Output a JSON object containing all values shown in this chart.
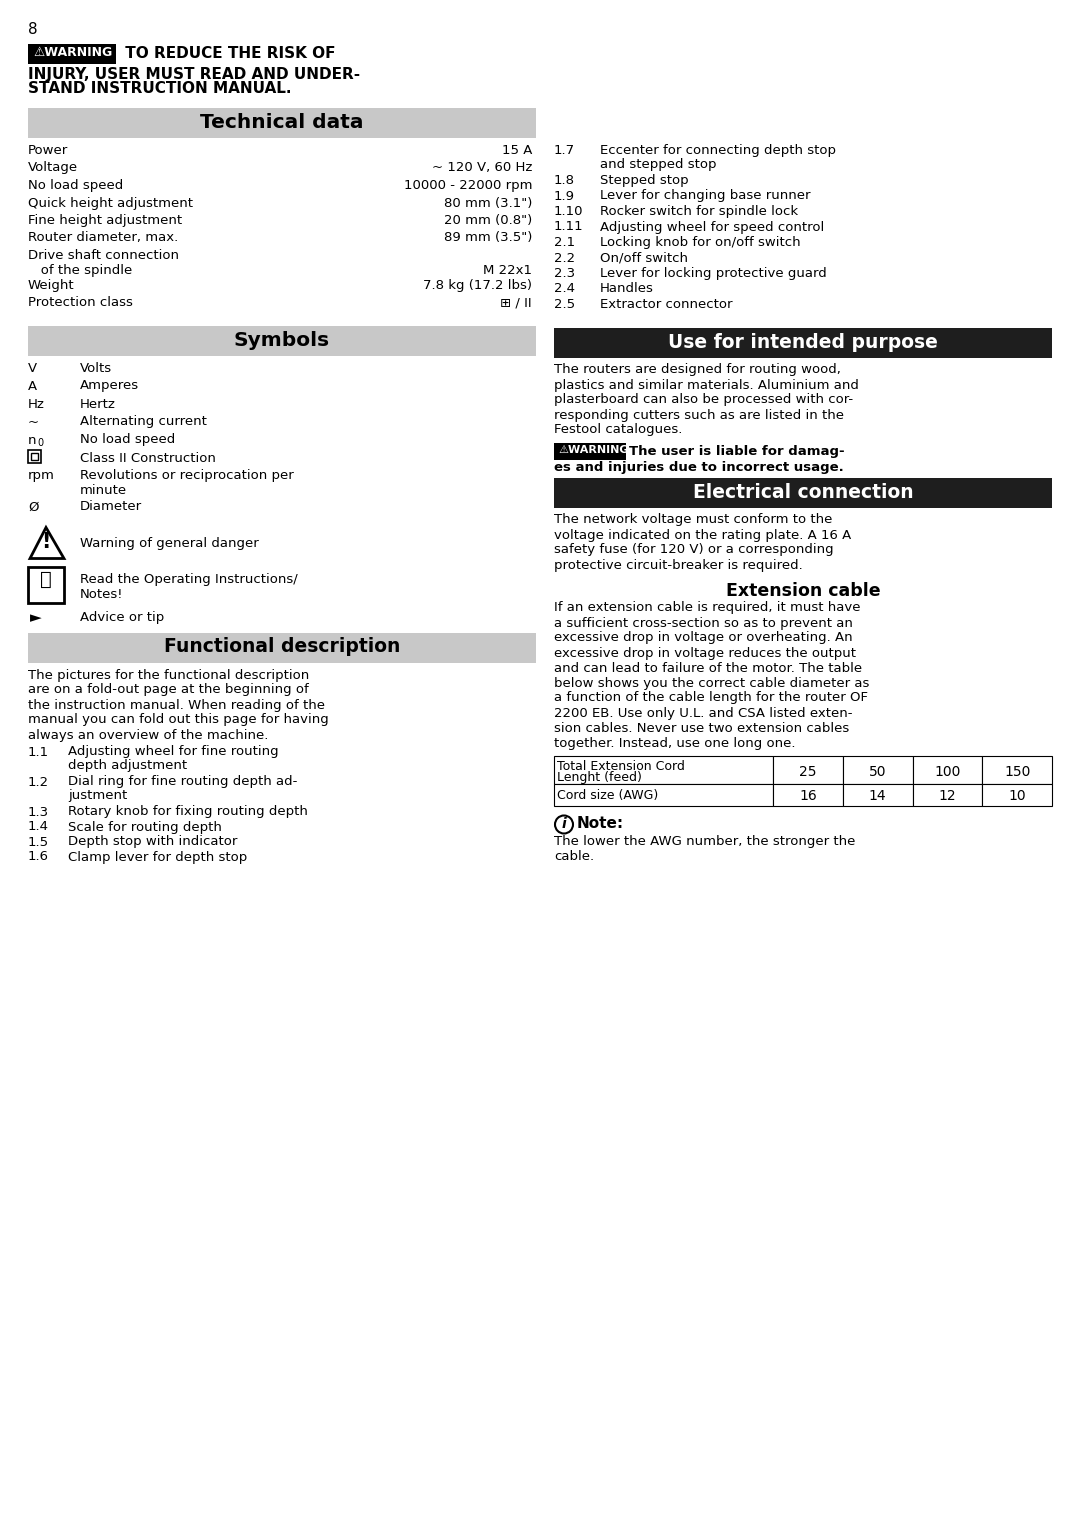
{
  "page_number": "8",
  "bg_color": "#ffffff",
  "section_header_bg": "#c8c8c8",
  "use_purpose_bg": "#1a1a1a",
  "electrical_bg": "#1a1a1a",
  "warning_text_lines": [
    " TO REDUCE THE RISK OF",
    "INJURY, USER MUST READ AND UNDER-",
    "STAND INSTRUCTION MANUAL."
  ],
  "tech_data_title": "Technical data",
  "tech_data_rows": [
    [
      "Power",
      "15 A"
    ],
    [
      "Voltage",
      "~ 120 V, 60 Hz"
    ],
    [
      "No load speed",
      "10000 - 22000 rpm"
    ],
    [
      "Quick height adjustment",
      "80 mm (3.1\")"
    ],
    [
      "Fine height adjustment",
      "20 mm (0.8\")"
    ],
    [
      "Router diameter, max.",
      "89 mm (3.5\")"
    ],
    [
      "Drive shaft connection\n   of the spindle",
      "M 22x1"
    ],
    [
      "Weight",
      "7.8 kg (17.2 lbs)"
    ],
    [
      "Protection class",
      "⊞ / II"
    ]
  ],
  "symbols_title": "Symbols",
  "symbols_rows": [
    [
      "V",
      "Volts"
    ],
    [
      "A",
      "Amperes"
    ],
    [
      "Hz",
      "Hertz"
    ],
    [
      "~",
      "Alternating current"
    ],
    [
      "n0",
      "No load speed"
    ],
    [
      "⊞",
      "Class II Construction"
    ],
    [
      "rpm",
      "Revolutions or reciprocation per\nminute"
    ],
    [
      "Ø",
      "Diameter"
    ]
  ],
  "func_desc_title": "Functional description",
  "func_desc_text": "The pictures for the functional description\nare on a fold-out page at the beginning of\nthe instruction manual. When reading of the\nmanual you can fold out this page for having\nalways an overview of the machine.",
  "func_items": [
    [
      "1.1",
      "Adjusting wheel for fine routing\ndepth adjustment"
    ],
    [
      "1.2",
      "Dial ring for fine routing depth ad-\njustment"
    ],
    [
      "1.3",
      "Rotary knob for fixing routing depth"
    ],
    [
      "1.4",
      "Scale for routing depth"
    ],
    [
      "1.5",
      "Depth stop with indicator"
    ],
    [
      "1.6",
      "Clamp lever for depth stop"
    ]
  ],
  "right_col_items": [
    [
      "1.7",
      "Eccenter for connecting depth stop\nand stepped stop"
    ],
    [
      "1.8",
      "Stepped stop"
    ],
    [
      "1.9",
      "Lever for changing base runner"
    ],
    [
      "1.10",
      "Rocker switch for spindle lock"
    ],
    [
      "1.11",
      "Adjusting wheel for speed control"
    ],
    [
      "2.1",
      "Locking knob for on/off switch"
    ],
    [
      "2.2",
      "On/off switch"
    ],
    [
      "2.3",
      "Lever for locking protective guard"
    ],
    [
      "2.4",
      "Handles"
    ],
    [
      "2.5",
      "Extractor connector"
    ]
  ],
  "use_purpose_title": "Use for intended purpose",
  "use_purpose_text": "The routers are designed for routing wood,\nplastics and similar materials. Aluminium and\nplasterboard can also be processed with cor-\nresponding cutters such as are listed in the\nFestool catalogues.",
  "warning2_line1": "The user is liable for damag-",
  "warning2_line2": "es and injuries due to incorrect usage.",
  "electrical_title": "Electrical connection",
  "electrical_text": "The network voltage must conform to the\nvoltage indicated on the rating plate. A 16 A\nsafety fuse (for 120 V) or a corresponding\nprotective circuit-breaker is required.",
  "extension_title": "Extension cable",
  "extension_text": "If an extension cable is required, it must have\na sufficient cross-section so as to prevent an\nexcessive drop in voltage or overheating. An\nexcessive drop in voltage reduces the output\nand can lead to failure of the motor. The table\nbelow shows you the correct cable diameter as\na function of the cable length for the router OF\n2200 EB. Use only U.L. and CSA listed exten-\nsion cables. Never use two extension cables\ntogether. Instead, use one long one.",
  "table_col0_header": "Total Extension Cord\nLenght (feed)",
  "table_col_headers": [
    "25",
    "50",
    "100",
    "150"
  ],
  "table_row_label": "Cord size (AWG)",
  "table_row_values": [
    "16",
    "14",
    "12",
    "10"
  ],
  "note_label": "Note:",
  "note_body": "The lower the AWG number, the stronger the\ncable.",
  "symbols_warning_text": "Warning of general danger",
  "symbols_read_text": "Read the Operating Instructions/\nNotes!",
  "symbols_advice_text": "Advice or tip"
}
